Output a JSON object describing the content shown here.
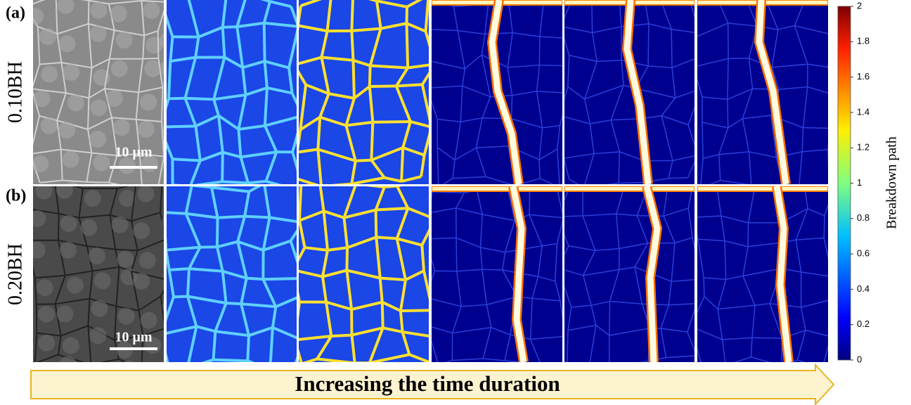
{
  "panels": [
    {
      "tag": "(a)",
      "label": "0.10BH",
      "scale_bar": "10 μm"
    },
    {
      "tag": "(b)",
      "label": "0.20BH",
      "scale_bar": "10 μm"
    }
  ],
  "colorbar": {
    "label": "Breakdown path",
    "lim": [
      0,
      2
    ],
    "ticks": [
      0,
      0.2,
      0.4,
      0.6,
      0.8,
      1,
      1.2,
      1.4,
      1.6,
      1.8,
      2
    ]
  },
  "arrow_text": "Increasing the time duration"
}
